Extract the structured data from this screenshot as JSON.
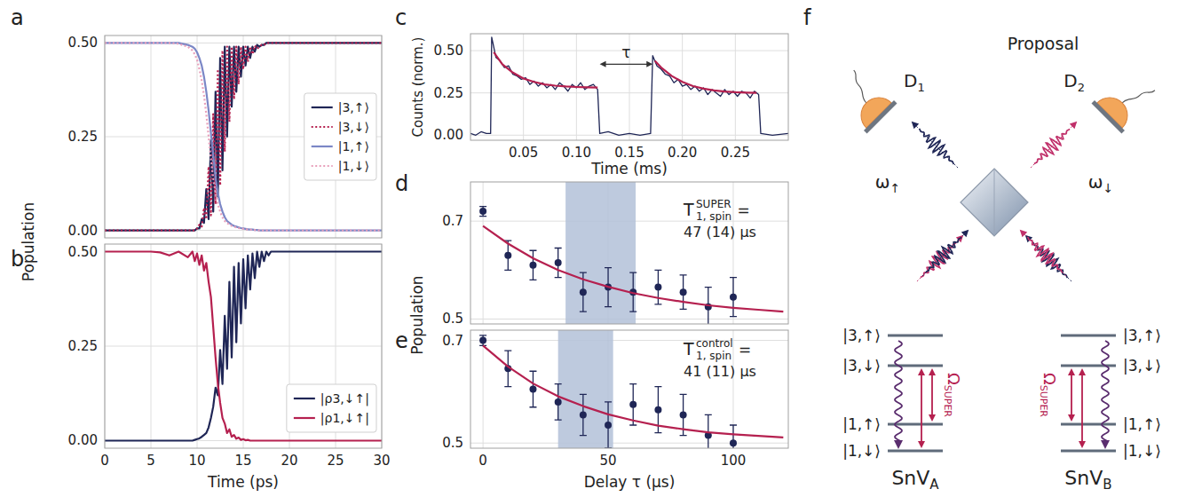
{
  "chart_data": [
    {
      "panel": "a",
      "type": "line",
      "ylabel": "Population",
      "xlim": [
        0,
        30
      ],
      "ylim": [
        -0.02,
        0.52
      ],
      "xticks": [
        0,
        5,
        10,
        15,
        20,
        25,
        30
      ],
      "yticks": [
        {
          "value": 0,
          "label": "0.00"
        },
        {
          "value": 0.25,
          "label": "0.25"
        },
        {
          "value": 0.5,
          "label": "0.50"
        }
      ],
      "grid": true,
      "tick_labels": "y",
      "legend": "right",
      "x": [
        0,
        1,
        2,
        3,
        4,
        5,
        6,
        7,
        8,
        9,
        9.5,
        9.75,
        10,
        10.25,
        10.5,
        10.75,
        11,
        11.25,
        11.5,
        11.75,
        12,
        12.25,
        12.5,
        12.75,
        13,
        13.25,
        13.5,
        13.75,
        14,
        14.25,
        14.5,
        14.75,
        15,
        15.25,
        15.5,
        15.75,
        16,
        16.25,
        16.5,
        16.75,
        17,
        17.25,
        17.5,
        17.75,
        18,
        19,
        20,
        21,
        22,
        23,
        24,
        25,
        26,
        27,
        28,
        29,
        30
      ],
      "series": [
        {
          "name": "|3,↑⟩",
          "color": "#1f2656",
          "line_style": "solid",
          "values": [
            0,
            0,
            0,
            0,
            0,
            0,
            0,
            0,
            0,
            0,
            0,
            0,
            0.005,
            0.005,
            0.03,
            0.02,
            0.11,
            0.03,
            0.24,
            0.05,
            0.37,
            0.09,
            0.46,
            0.16,
            0.49,
            0.25,
            0.49,
            0.33,
            0.49,
            0.37,
            0.49,
            0.41,
            0.49,
            0.44,
            0.49,
            0.46,
            0.49,
            0.477,
            0.495,
            0.49,
            0.495,
            0.495,
            0.5,
            0.5,
            0.5,
            0.5,
            0.5,
            0.5,
            0.5,
            0.5,
            0.5,
            0.5,
            0.5,
            0.5,
            0.5,
            0.5,
            0.5
          ]
        },
        {
          "name": "|3,↓⟩",
          "color": "#b5204f",
          "line_style": "dotted",
          "values": [
            0,
            0,
            0,
            0,
            0,
            0,
            0,
            0,
            0,
            0,
            0,
            0,
            0.005,
            0.015,
            0.01,
            0.06,
            0.03,
            0.17,
            0.04,
            0.31,
            0.07,
            0.43,
            0.12,
            0.48,
            0.21,
            0.49,
            0.29,
            0.49,
            0.35,
            0.49,
            0.39,
            0.49,
            0.43,
            0.49,
            0.45,
            0.49,
            0.47,
            0.493,
            0.485,
            0.49,
            0.495,
            0.495,
            0.5,
            0.5,
            0.5,
            0.5,
            0.5,
            0.5,
            0.5,
            0.5,
            0.5,
            0.5,
            0.5,
            0.5,
            0.5,
            0.5,
            0.5
          ]
        },
        {
          "name": "|1,↑⟩",
          "color": "#7b87c6",
          "line_style": "solid",
          "values": [
            0.5,
            0.5,
            0.5,
            0.5,
            0.5,
            0.5,
            0.5,
            0.5,
            0.5,
            0.495,
            0.49,
            0.485,
            0.475,
            0.46,
            0.44,
            0.41,
            0.37,
            0.32,
            0.26,
            0.2,
            0.14,
            0.1,
            0.07,
            0.05,
            0.035,
            0.025,
            0.02,
            0.015,
            0.012,
            0.01,
            0.008,
            0.006,
            0.005,
            0.004,
            0.003,
            0.002,
            0.002,
            0.001,
            0.001,
            0,
            0,
            0,
            0,
            0,
            0,
            0,
            0,
            0,
            0,
            0,
            0,
            0,
            0,
            0,
            0,
            0,
            0
          ]
        },
        {
          "name": "|1,↓⟩",
          "color": "#e8a0bb",
          "line_style": "dotted",
          "values": [
            0.5,
            0.5,
            0.5,
            0.5,
            0.5,
            0.5,
            0.5,
            0.5,
            0.498,
            0.49,
            0.48,
            0.47,
            0.455,
            0.43,
            0.4,
            0.36,
            0.31,
            0.25,
            0.19,
            0.14,
            0.1,
            0.07,
            0.05,
            0.035,
            0.025,
            0.02,
            0.015,
            0.012,
            0.01,
            0.008,
            0.006,
            0.005,
            0.004,
            0.003,
            0.002,
            0.002,
            0.001,
            0.001,
            0,
            0,
            0,
            0,
            0,
            0,
            0,
            0,
            0,
            0,
            0,
            0,
            0,
            0,
            0,
            0,
            0,
            0,
            0
          ]
        }
      ]
    },
    {
      "panel": "b",
      "type": "line",
      "xlabel": "Time (ps)",
      "xlim": [
        0,
        30
      ],
      "ylim": [
        -0.02,
        0.52
      ],
      "xticks": [
        0,
        5,
        10,
        15,
        20,
        25,
        30
      ],
      "yticks": [
        {
          "value": 0,
          "label": "0.00"
        },
        {
          "value": 0.25,
          "label": "0.25"
        },
        {
          "value": 0.5,
          "label": "0.50"
        }
      ],
      "grid": true,
      "tick_labels": true,
      "legend": "lower right",
      "x": [
        0,
        1,
        2,
        3,
        4,
        5,
        6,
        7,
        8,
        9,
        9.5,
        9.75,
        10,
        10.25,
        10.5,
        10.75,
        11,
        11.25,
        11.5,
        11.75,
        12,
        12.25,
        12.5,
        12.75,
        13,
        13.25,
        13.5,
        13.75,
        14,
        14.25,
        14.5,
        14.75,
        15,
        15.25,
        15.5,
        15.75,
        16,
        16.25,
        16.5,
        16.75,
        17,
        17.25,
        17.5,
        17.75,
        18,
        19,
        20,
        21,
        22,
        23,
        24,
        25,
        26,
        27,
        28,
        29,
        30
      ],
      "series": [
        {
          "name": "|ρ3,↓↑|",
          "color": "#1f2656",
          "line_style": "solid",
          "values": [
            0,
            0,
            0,
            0,
            0,
            0,
            0,
            0,
            0,
            0,
            0,
            0.002,
            0.004,
            0.006,
            0.01,
            0.015,
            0.02,
            0.035,
            0.06,
            0.09,
            0.14,
            0.12,
            0.24,
            0.15,
            0.33,
            0.19,
            0.42,
            0.22,
            0.46,
            0.26,
            0.47,
            0.31,
            0.48,
            0.35,
            0.49,
            0.4,
            0.495,
            0.43,
            0.5,
            0.46,
            0.5,
            0.475,
            0.5,
            0.49,
            0.5,
            0.5,
            0.5,
            0.5,
            0.5,
            0.5,
            0.5,
            0.5,
            0.5,
            0.5,
            0.5,
            0.5,
            0.5
          ]
        },
        {
          "name": "|ρ1,↓↑|",
          "color": "#b5204f",
          "line_style": "solid",
          "values": [
            0.5,
            0.5,
            0.5,
            0.5,
            0.5,
            0.5,
            0.498,
            0.49,
            0.5,
            0.485,
            0.5,
            0.475,
            0.495,
            0.465,
            0.49,
            0.45,
            0.47,
            0.42,
            0.38,
            0.3,
            0.22,
            0.15,
            0.1,
            0.06,
            0.045,
            0.02,
            0.03,
            0.01,
            0.015,
            0.005,
            0.008,
            0.002,
            0.004,
            0.001,
            0.002,
            0,
            0,
            0,
            0,
            0,
            0,
            0,
            0,
            0,
            0,
            0,
            0,
            0,
            0,
            0,
            0,
            0,
            0,
            0,
            0,
            0,
            0
          ]
        }
      ]
    },
    {
      "panel": "c",
      "type": "line",
      "xlabel": "Time (ms)",
      "ylabel": "Counts (norm.)",
      "xlim": [
        0,
        0.3
      ],
      "ylim": [
        -0.03,
        0.6
      ],
      "xticks": [
        {
          "value": 0.05,
          "label": "0.05"
        },
        {
          "value": 0.1,
          "label": "0.10"
        },
        {
          "value": 0.15,
          "label": "0.15"
        },
        {
          "value": 0.2,
          "label": "0.20"
        },
        {
          "value": 0.25,
          "label": "0.25"
        }
      ],
      "yticks": [
        {
          "value": 0,
          "label": "0.00"
        },
        {
          "value": 0.25,
          "label": "0.25"
        },
        {
          "value": 0.5,
          "label": "0.50"
        }
      ],
      "grid": true,
      "tick_labels": true,
      "annotations": [
        {
          "text": "τ",
          "x": [
            0.122,
            0.172
          ],
          "y": 0.42
        }
      ],
      "series": [
        {
          "color": "#1f2656",
          "line_style": "solid",
          "x": [
            0,
            0.005,
            0.01,
            0.015,
            0.019,
            0.02,
            0.024,
            0.028,
            0.032,
            0.036,
            0.04,
            0.044,
            0.048,
            0.052,
            0.056,
            0.06,
            0.064,
            0.068,
            0.072,
            0.076,
            0.08,
            0.084,
            0.088,
            0.092,
            0.096,
            0.1,
            0.104,
            0.108,
            0.112,
            0.116,
            0.12,
            0.122,
            0.13,
            0.14,
            0.15,
            0.16,
            0.17,
            0.172,
            0.176,
            0.18,
            0.184,
            0.188,
            0.192,
            0.196,
            0.2,
            0.204,
            0.208,
            0.212,
            0.216,
            0.22,
            0.224,
            0.228,
            0.232,
            0.236,
            0.24,
            0.244,
            0.248,
            0.252,
            0.256,
            0.26,
            0.264,
            0.268,
            0.272,
            0.274,
            0.285,
            0.3
          ],
          "values": [
            0.01,
            0,
            0.02,
            0.01,
            0.01,
            0.58,
            0.46,
            0.44,
            0.4,
            0.41,
            0.36,
            0.35,
            0.33,
            0.34,
            0.3,
            0.32,
            0.29,
            0.31,
            0.28,
            0.3,
            0.27,
            0.31,
            0.29,
            0.26,
            0.3,
            0.28,
            0.31,
            0.27,
            0.29,
            0.3,
            0.27,
            0.01,
            0.02,
            0,
            0.01,
            0,
            0.01,
            0.47,
            0.41,
            0.39,
            0.36,
            0.35,
            0.31,
            0.33,
            0.29,
            0.3,
            0.27,
            0.29,
            0.26,
            0.28,
            0.24,
            0.27,
            0.25,
            0.23,
            0.27,
            0.24,
            0.26,
            0.23,
            0.26,
            0.25,
            0.22,
            0.26,
            0.24,
            0.01,
            0,
            0.01
          ]
        },
        {
          "color": "#b5204f",
          "line_style": "solid",
          "x": [
            0.022,
            0.03,
            0.04,
            0.05,
            0.06,
            0.07,
            0.08,
            0.09,
            0.1,
            0.11,
            0.12
          ],
          "values": [
            0.49,
            0.42,
            0.37,
            0.335,
            0.315,
            0.3,
            0.293,
            0.288,
            0.285,
            0.283,
            0.282
          ]
        },
        {
          "color": "#b5204f",
          "line_style": "solid",
          "x": [
            0.174,
            0.18,
            0.19,
            0.2,
            0.21,
            0.22,
            0.23,
            0.24,
            0.25,
            0.26,
            0.27
          ],
          "values": [
            0.44,
            0.4,
            0.35,
            0.315,
            0.29,
            0.275,
            0.265,
            0.258,
            0.254,
            0.252,
            0.25
          ]
        }
      ]
    },
    {
      "panel": "d",
      "type": "scatter",
      "ylabel": "Population",
      "xlim": [
        -5,
        122
      ],
      "ylim": [
        0.49,
        0.78
      ],
      "xticks": [
        0,
        50,
        100
      ],
      "yticks": [
        0.5,
        0.7
      ],
      "grid": true,
      "tick_labels": "y",
      "band": [
        33,
        61
      ],
      "annotations": [
        {
          "symbol": "T",
          "superscript": "SUPER",
          "subscript": "1, spin",
          "suffix": " =",
          "value": "47 (14) µs"
        }
      ],
      "series": [
        {
          "type": "scatter",
          "marker": "circle",
          "color": "#1f2656",
          "x": [
            0,
            10,
            20,
            30,
            40,
            50,
            60,
            70,
            80,
            90,
            100
          ],
          "values": [
            0.72,
            0.63,
            0.61,
            0.615,
            0.555,
            0.565,
            0.555,
            0.565,
            0.555,
            0.525,
            0.545
          ],
          "errors": [
            0.01,
            0.03,
            0.03,
            0.03,
            0.04,
            0.04,
            0.04,
            0.035,
            0.035,
            0.04,
            0.04
          ]
        },
        {
          "type": "line",
          "line_style": "solid",
          "color": "#b5204f",
          "x": [
            0,
            10,
            20,
            30,
            40,
            50,
            60,
            70,
            80,
            90,
            100,
            110,
            120
          ],
          "values": [
            0.69,
            0.654,
            0.624,
            0.6,
            0.581,
            0.566,
            0.553,
            0.543,
            0.535,
            0.528,
            0.523,
            0.519,
            0.515
          ]
        }
      ]
    },
    {
      "panel": "e",
      "type": "scatter",
      "xlabel": "Delay τ (µs)",
      "xlim": [
        -5,
        122
      ],
      "ylim": [
        0.49,
        0.72
      ],
      "xticks": [
        0,
        50,
        100
      ],
      "yticks": [
        0.5,
        0.7
      ],
      "grid": true,
      "tick_labels": true,
      "band": [
        30,
        52
      ],
      "annotations": [
        {
          "symbol": "T",
          "superscript": "control",
          "subscript": "1, spin",
          "suffix": " =",
          "value": "41 (11) µs"
        }
      ],
      "series": [
        {
          "type": "scatter",
          "marker": "circle",
          "color": "#1f2656",
          "x": [
            0,
            10,
            20,
            30,
            40,
            50,
            60,
            70,
            80,
            90,
            100
          ],
          "values": [
            0.7,
            0.645,
            0.605,
            0.58,
            0.555,
            0.535,
            0.575,
            0.565,
            0.555,
            0.515,
            0.5
          ],
          "errors": [
            0.01,
            0.035,
            0.035,
            0.035,
            0.04,
            0.045,
            0.04,
            0.045,
            0.04,
            0.04,
            0.035
          ]
        },
        {
          "type": "line",
          "line_style": "solid",
          "color": "#b5204f",
          "x": [
            0,
            10,
            20,
            30,
            40,
            50,
            60,
            70,
            80,
            90,
            100,
            110,
            120
          ],
          "values": [
            0.69,
            0.649,
            0.616,
            0.591,
            0.572,
            0.556,
            0.544,
            0.534,
            0.527,
            0.521,
            0.517,
            0.514,
            0.511
          ]
        }
      ]
    }
  ],
  "diagram": {
    "panel": "f",
    "title": "Proposal",
    "detectors": [
      {
        "text": "D",
        "sub": "1"
      },
      {
        "text": "D",
        "sub": "2"
      }
    ],
    "photons": [
      {
        "text": "ω",
        "sub": "↑",
        "color": "#1f2656"
      },
      {
        "text": "ω",
        "sub": "↓",
        "color": "#c0306a"
      }
    ],
    "systems": [
      {
        "text": "SnV",
        "sub": "A",
        "levels": [
          "|3,↑⟩",
          "|3,↓⟩",
          "|1,↑⟩",
          "|1,↓⟩"
        ],
        "drive": {
          "text": "Ω",
          "sub": "SUPER"
        }
      },
      {
        "text": "SnV",
        "sub": "B",
        "levels": [
          "|3,↑⟩",
          "|3,↓⟩",
          "|1,↑⟩",
          "|1,↓⟩"
        ],
        "drive": {
          "text": "Ω",
          "sub": "SUPER"
        }
      }
    ]
  }
}
